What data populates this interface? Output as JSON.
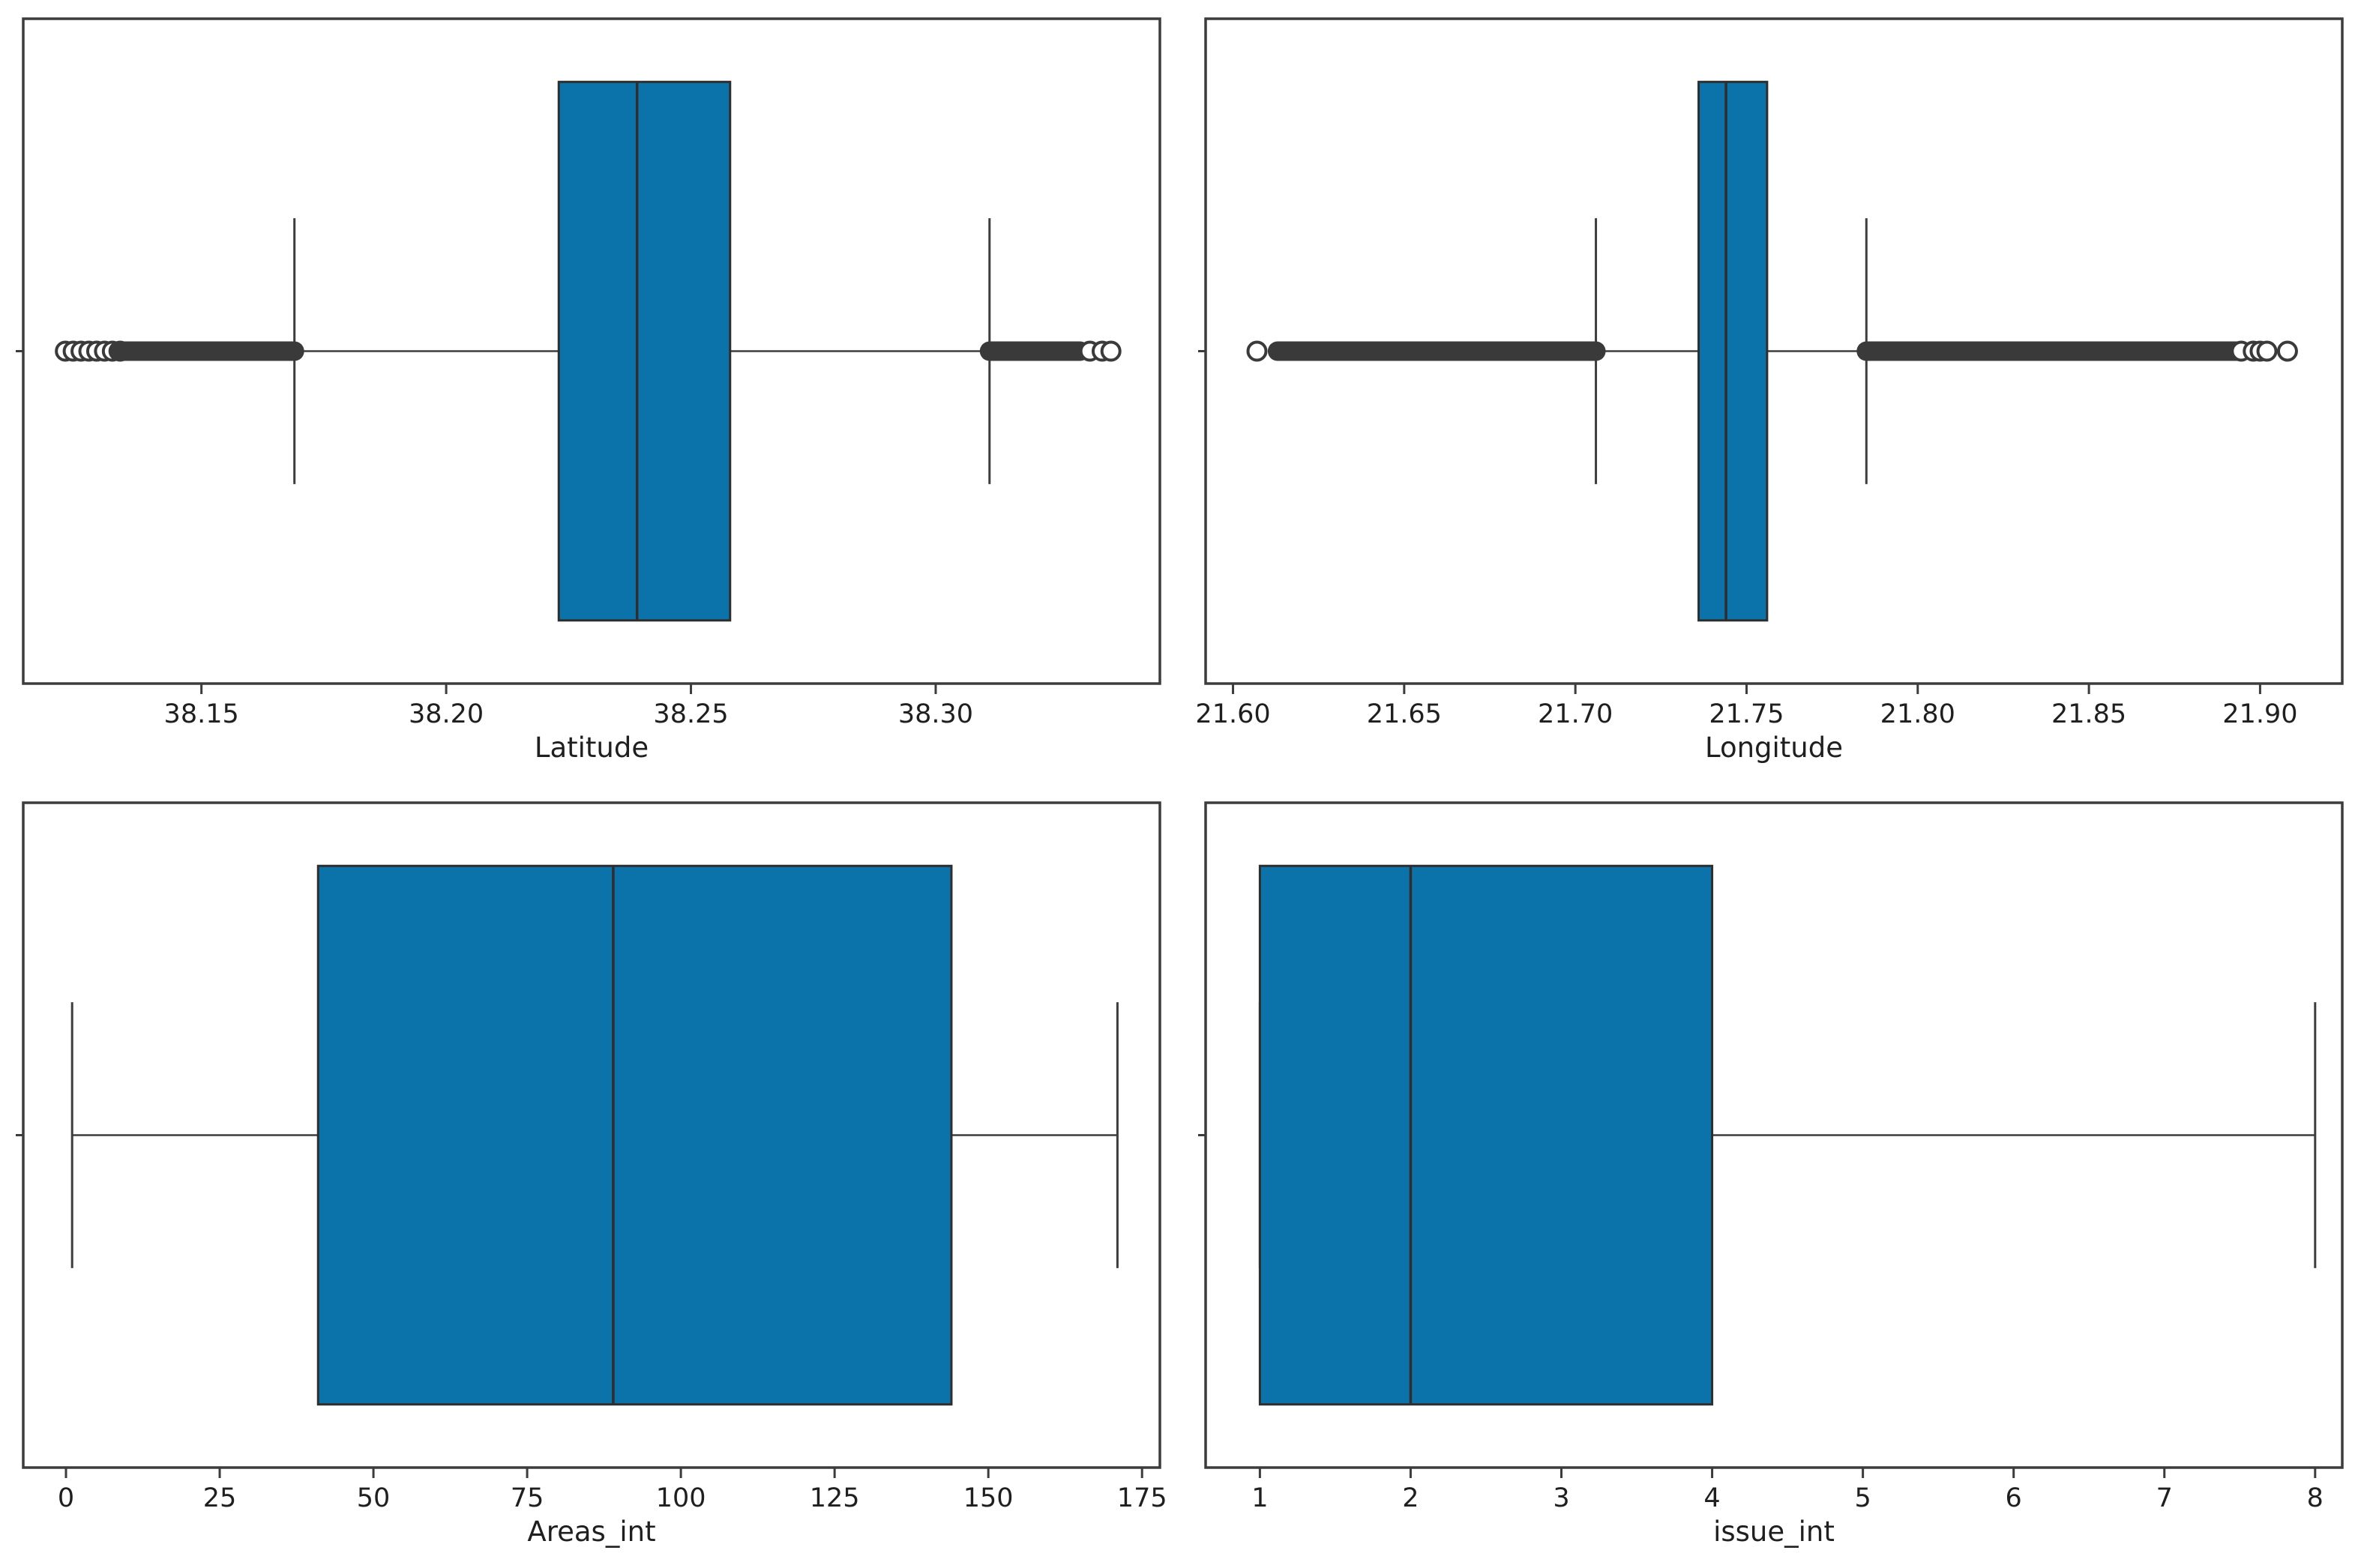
{
  "figure": {
    "background": "#ffffff",
    "rows": 2,
    "cols": 2
  },
  "colors": {
    "box_fill": "#0b73a9",
    "box_edge": "#2e2e2e",
    "line": "#3d3d3d",
    "flier": "#3a3a3a",
    "spine": "#3c3c3c",
    "text": "#1f1f1f",
    "background": "#ffffff"
  },
  "chart_data": [
    {
      "type": "box",
      "orientation": "horizontal",
      "xlabel": "Latitude",
      "ytick_label": "",
      "grid": false,
      "xlim": [
        38.1136,
        38.3458
      ],
      "xticks": [
        38.15,
        38.2,
        38.25,
        38.3
      ],
      "xtick_labels": [
        "38.15",
        "38.20",
        "38.25",
        "38.30"
      ],
      "box": {
        "q1": 38.223,
        "median": 38.239,
        "q3": 38.258,
        "whisker_low": 38.169,
        "whisker_high": 38.311
      },
      "fliers": [
        {
          "shape": "circle",
          "x": 38.1222
        },
        {
          "shape": "circle",
          "x": 38.1238
        },
        {
          "shape": "circle",
          "x": 38.1254
        },
        {
          "shape": "circle",
          "x": 38.127
        },
        {
          "shape": "circle",
          "x": 38.1286
        },
        {
          "shape": "circle",
          "x": 38.1302
        },
        {
          "shape": "circle",
          "x": 38.1318
        },
        {
          "shape": "circle",
          "x": 38.1334
        },
        {
          "shape": "band",
          "from": 38.133,
          "to": 38.169
        },
        {
          "shape": "band",
          "from": 38.311,
          "to": 38.3295
        },
        {
          "shape": "circle",
          "x": 38.3315
        },
        {
          "shape": "circle",
          "x": 38.334
        },
        {
          "shape": "circle",
          "x": 38.3358
        }
      ]
    },
    {
      "type": "box",
      "orientation": "horizontal",
      "xlabel": "Longitude",
      "ytick_label": "",
      "grid": false,
      "xlim": [
        21.592,
        21.924
      ],
      "xticks": [
        21.6,
        21.65,
        21.7,
        21.75,
        21.8,
        21.85,
        21.9
      ],
      "xtick_labels": [
        "21.60",
        "21.65",
        "21.70",
        "21.75",
        "21.80",
        "21.85",
        "21.90"
      ],
      "box": {
        "q1": 21.736,
        "median": 21.744,
        "q3": 21.756,
        "whisker_low": 21.706,
        "whisker_high": 21.785
      },
      "fliers": [
        {
          "shape": "circle",
          "x": 21.607
        },
        {
          "shape": "band",
          "from": 21.613,
          "to": 21.706
        },
        {
          "shape": "band",
          "from": 21.785,
          "to": 21.894
        },
        {
          "shape": "circle",
          "x": 21.8945
        },
        {
          "shape": "circle",
          "x": 21.898
        },
        {
          "shape": "circle",
          "x": 21.9
        },
        {
          "shape": "circle",
          "x": 21.902
        },
        {
          "shape": "circle",
          "x": 21.908
        }
      ]
    },
    {
      "type": "box",
      "orientation": "horizontal",
      "xlabel": "Areas_int",
      "ytick_label": "",
      "grid": false,
      "xlim": [
        -6.95,
        177.9
      ],
      "xticks": [
        0,
        25,
        50,
        75,
        100,
        125,
        150,
        175
      ],
      "xtick_labels": [
        "0",
        "25",
        "50",
        "75",
        "100",
        "125",
        "150",
        "175"
      ],
      "box": {
        "q1": 41,
        "median": 89,
        "q3": 144,
        "whisker_low": 1,
        "whisker_high": 171
      },
      "fliers": []
    },
    {
      "type": "box",
      "orientation": "horizontal",
      "xlabel": "issue_int",
      "ytick_label": "",
      "grid": false,
      "xlim": [
        0.64,
        8.18
      ],
      "xticks": [
        1,
        2,
        3,
        4,
        5,
        6,
        7,
        8
      ],
      "xtick_labels": [
        "1",
        "2",
        "3",
        "4",
        "5",
        "6",
        "7",
        "8"
      ],
      "box": {
        "q1": 1,
        "median": 2,
        "q3": 4,
        "whisker_low": 1,
        "whisker_high": 8
      },
      "fliers": []
    }
  ]
}
